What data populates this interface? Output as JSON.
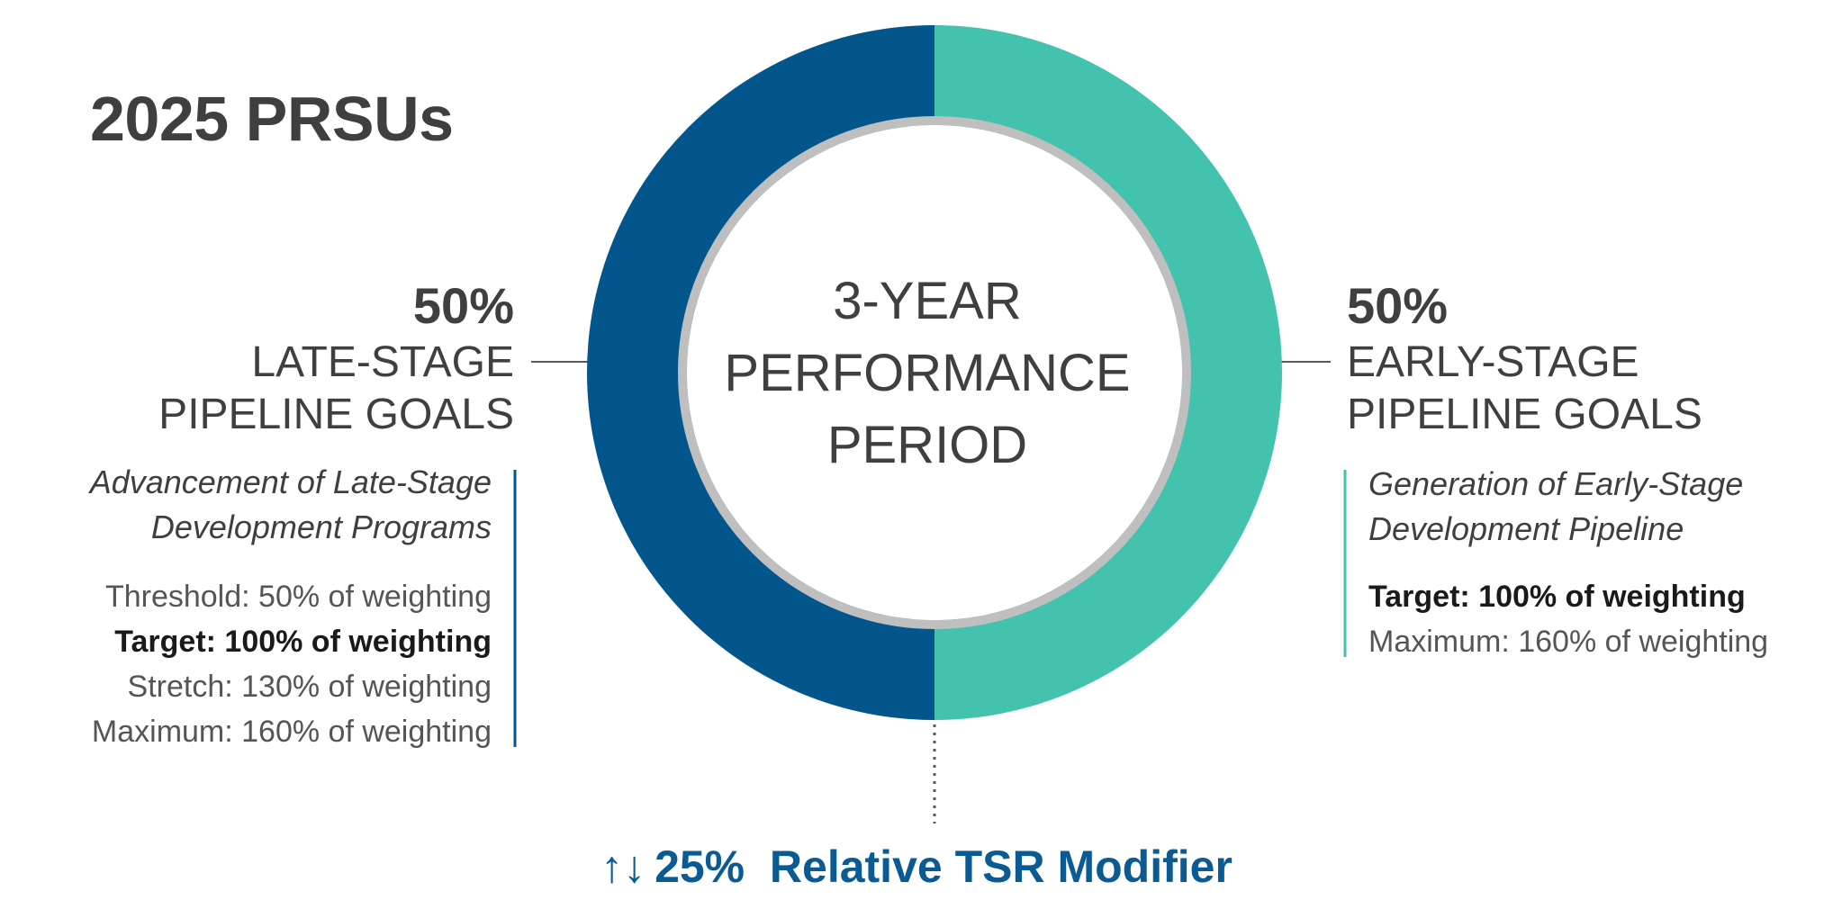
{
  "title": "2025 PRSUs",
  "center": {
    "line1": "3-YEAR",
    "line2": "PERFORMANCE",
    "line3": "PERIOD"
  },
  "left": {
    "percent": "50%",
    "goal_line1": "LATE-STAGE",
    "goal_line2": "PIPELINE GOALS",
    "desc_line1": "Advancement of Late-Stage",
    "desc_line2": "Development Programs",
    "levels": [
      "Threshold: 50% of weighting",
      "Target: 100% of weighting",
      "Stretch: 130% of weighting",
      "Maximum: 160% of weighting"
    ]
  },
  "right": {
    "percent": "50%",
    "goal_line1": "EARLY-STAGE",
    "goal_line2": "PIPELINE GOALS",
    "desc_line1": "Generation of Early-Stage",
    "desc_line2": "Development Pipeline",
    "levels": [
      "Target: 100% of weighting",
      "Maximum: 160% of weighting"
    ]
  },
  "modifier": {
    "arrows": "↑↓",
    "label": "25%  Relative TSR Modifier"
  },
  "colors": {
    "late_stage": "#02568c",
    "early_stage": "#43c2ad",
    "inner_ring": "#bfbfbf",
    "accent_text": "#0a5a93"
  },
  "chart_data": {
    "type": "pie",
    "title": "2025 PRSUs",
    "categories": [
      "LATE-STAGE PIPELINE GOALS",
      "EARLY-STAGE PIPELINE GOALS"
    ],
    "values": [
      50,
      50
    ]
  }
}
